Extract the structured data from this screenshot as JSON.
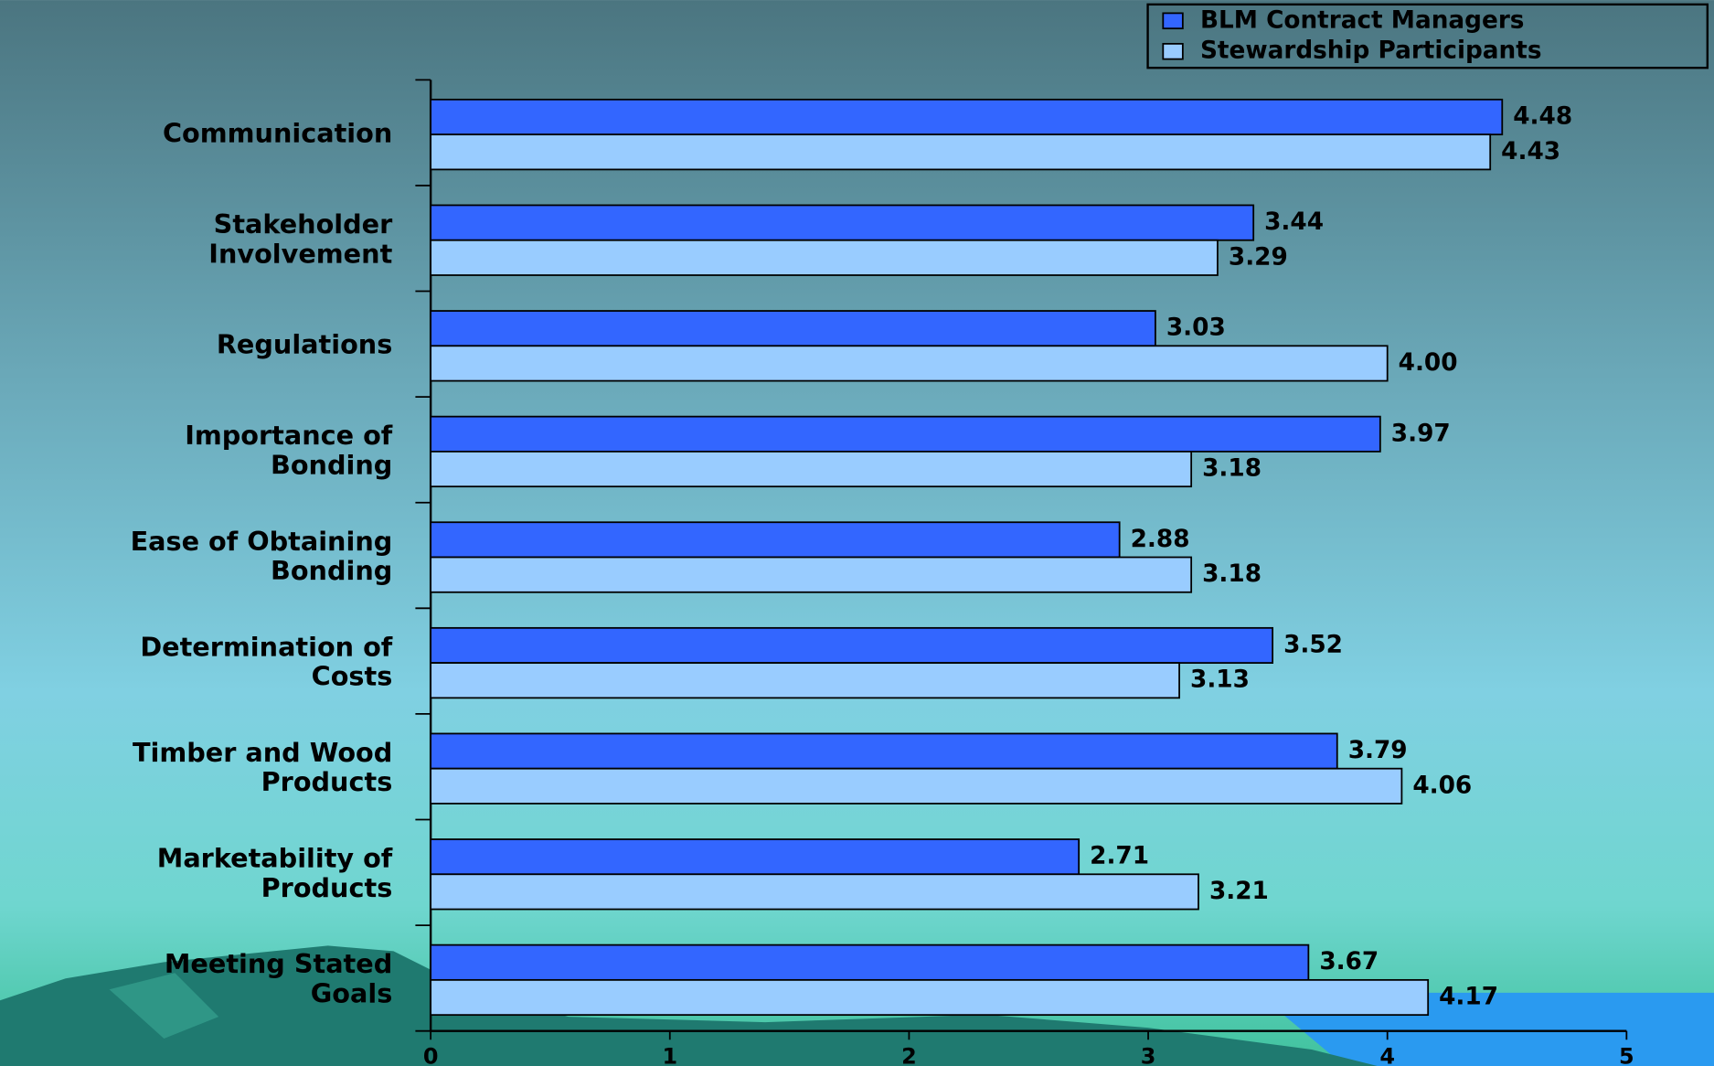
{
  "chart_data": {
    "type": "bar",
    "orientation": "horizontal",
    "categories": [
      "Communication",
      "Stakeholder\nInvolvement",
      "Regulations",
      "Importance of\nBonding",
      "Ease of Obtaining\nBonding",
      "Determination of\nCosts",
      "Timber and Wood\nProducts",
      "Marketability of\nProducts",
      "Meeting Stated\nGoals"
    ],
    "series": [
      {
        "name": "BLM Contract Managers",
        "color": "#3366ff",
        "values": [
          4.48,
          3.44,
          3.03,
          3.97,
          2.88,
          3.52,
          3.79,
          2.71,
          3.67
        ],
        "value_labels": [
          "4.48",
          "3.44",
          "3.03",
          "3.97",
          "2.88",
          "3.52",
          "3.79",
          "2.71",
          "3.67"
        ]
      },
      {
        "name": "Stewardship Participants",
        "color": "#99ccff",
        "values": [
          4.43,
          3.29,
          4,
          3.18,
          3.18,
          3.13,
          4.06,
          3.21,
          4.17
        ],
        "value_labels": [
          "4.43",
          "3.29",
          "4.00",
          "3.18",
          "3.18",
          "3.13",
          "4.06",
          "3.21",
          "4.17"
        ]
      }
    ],
    "xlim": [
      0,
      5
    ],
    "xticks": [
      0,
      1,
      2,
      3,
      4,
      5
    ],
    "legend": "top-right",
    "grid": false
  }
}
